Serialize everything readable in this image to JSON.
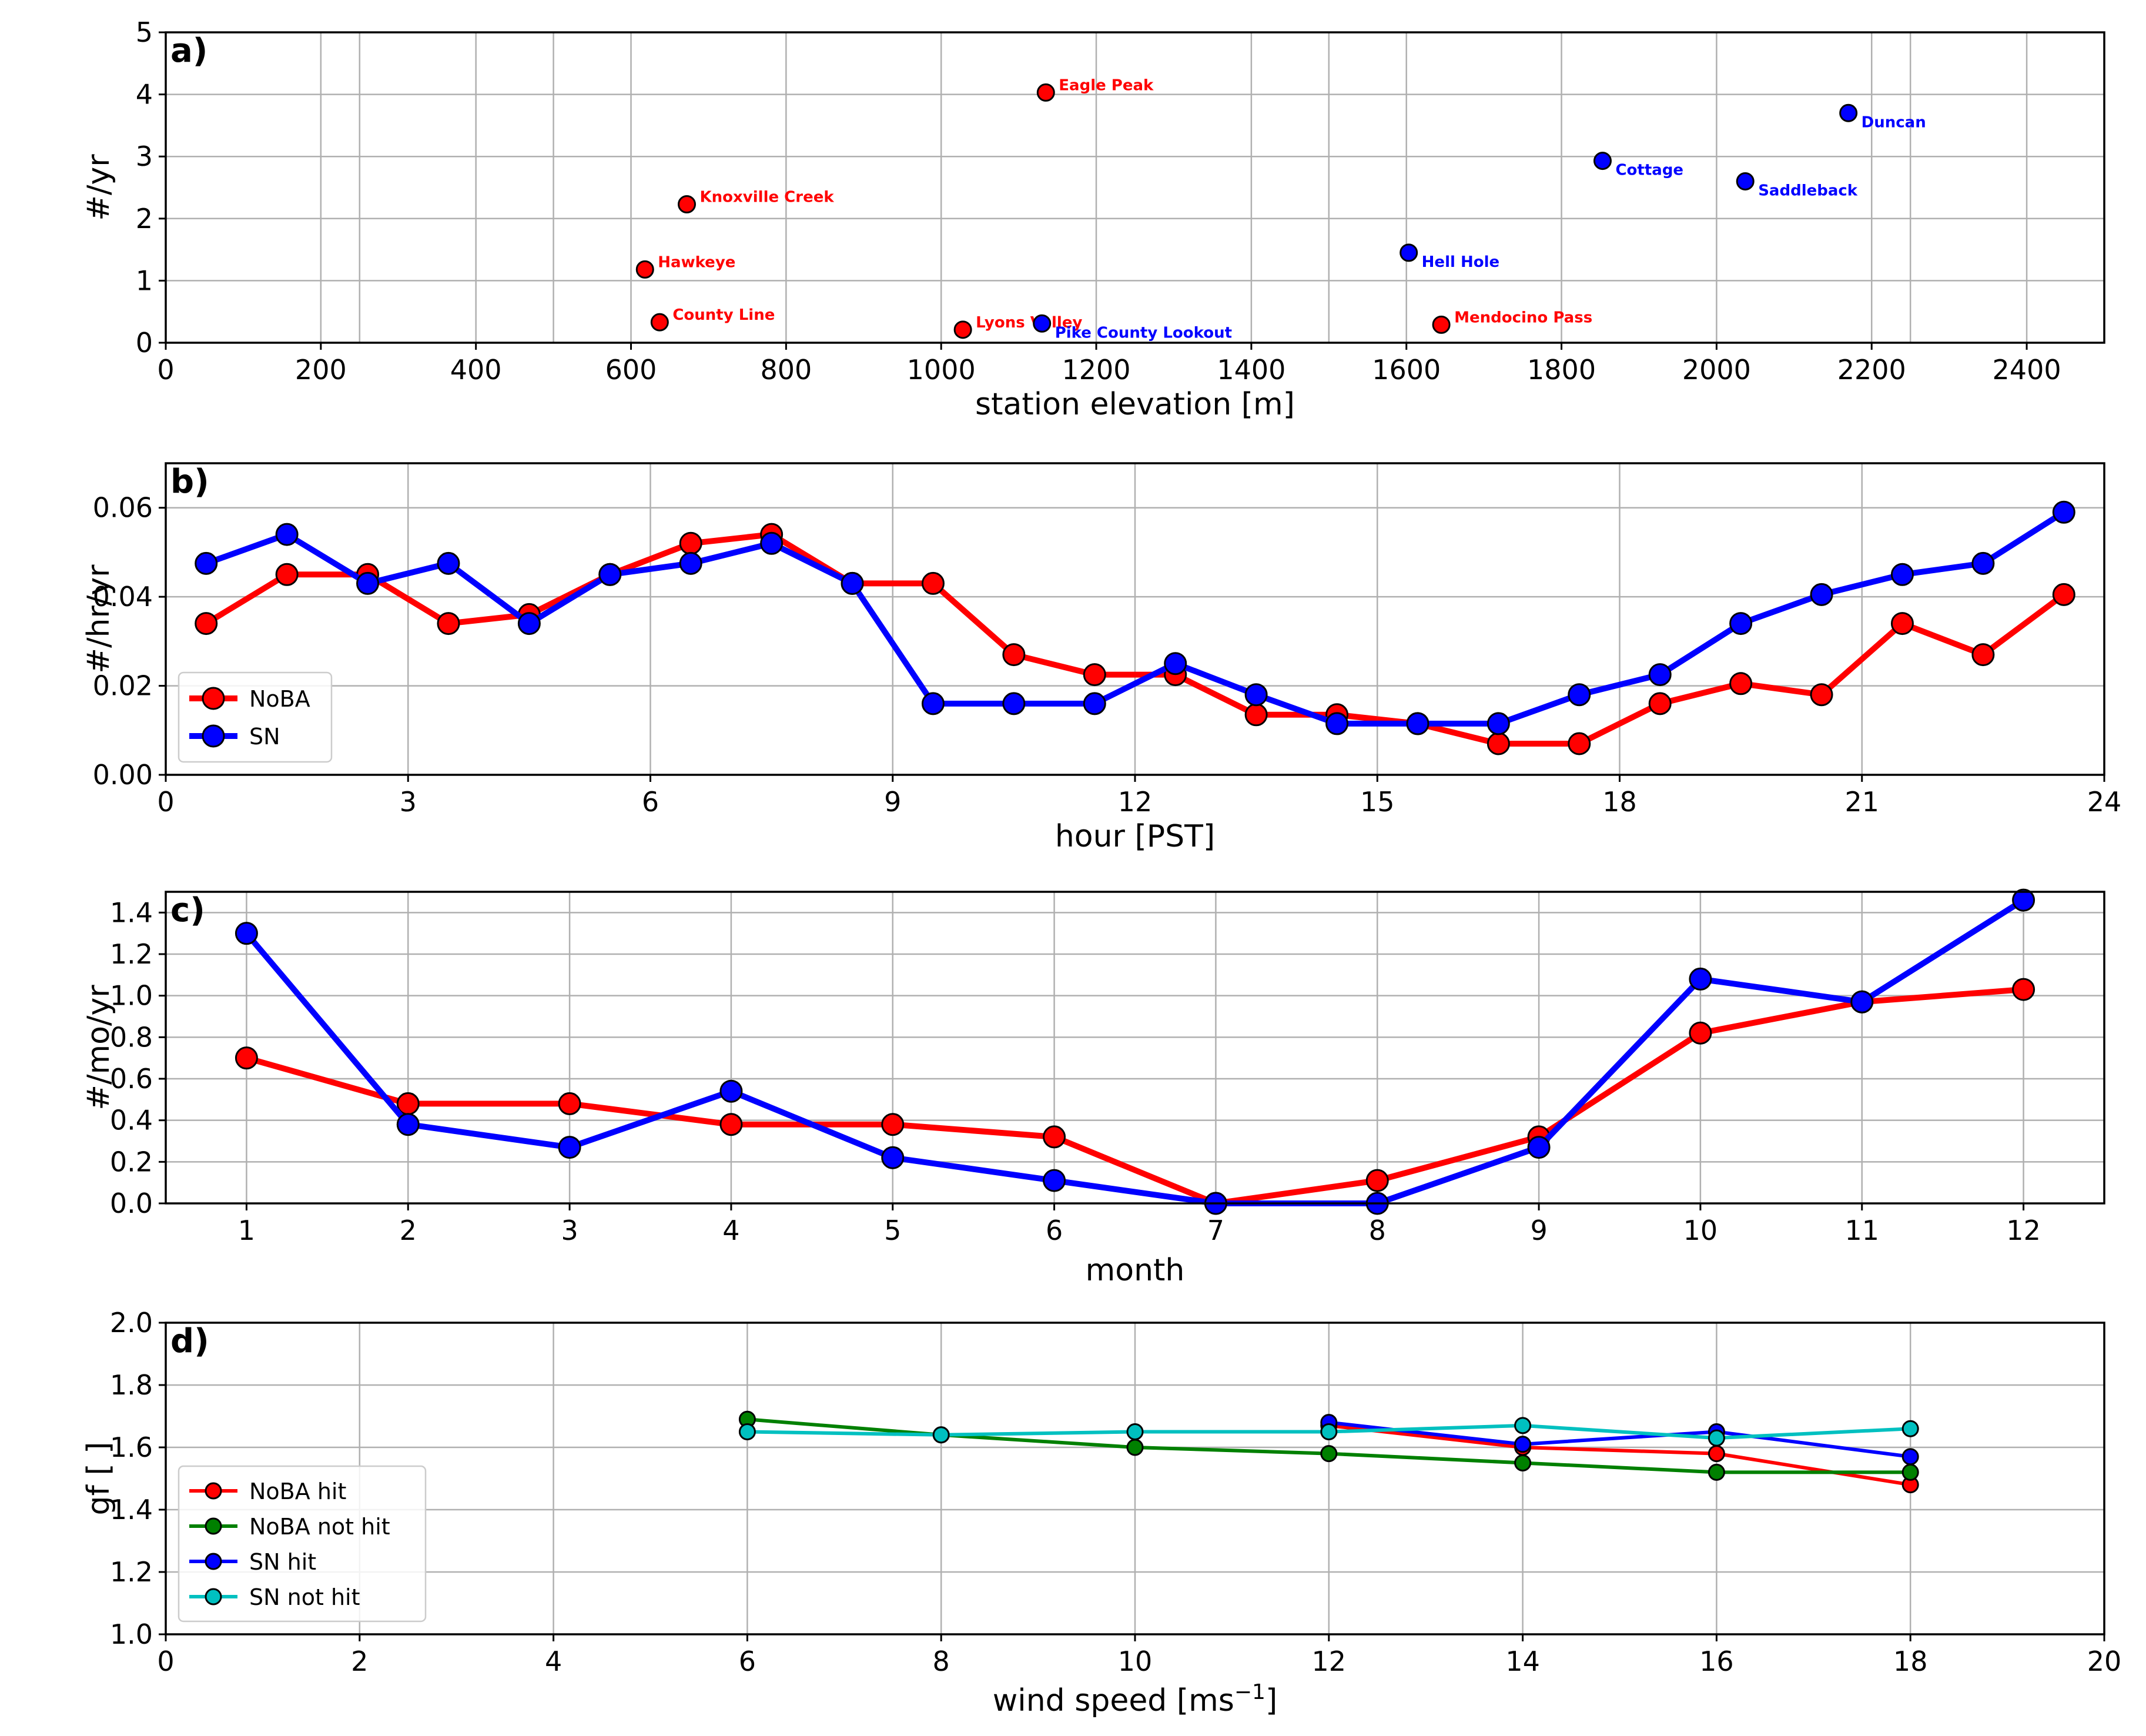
{
  "chart_data": [
    {
      "panel": "a)",
      "type": "scatter",
      "xlabel": "station elevation [m]",
      "ylabel": "#/yr",
      "xlim": [
        0,
        2500
      ],
      "ylim": [
        0,
        5
      ],
      "xticks": [
        "0",
        "200",
        "400",
        "600",
        "800",
        "1000",
        "1200",
        "1400",
        "1600",
        "1800",
        "2000",
        "2200",
        "2400"
      ],
      "yticks": [
        "0",
        "1",
        "2",
        "3",
        "4",
        "5"
      ],
      "grid": true,
      "colors": {
        "NoBA": "#ff0000",
        "SN": "#0000ff"
      },
      "points": [
        {
          "label": "Eagle Peak",
          "group": "NoBA",
          "x": 1135,
          "y": 4.03
        },
        {
          "label": "Knoxville Creek",
          "group": "NoBA",
          "x": 672,
          "y": 2.23
        },
        {
          "label": "Hawkeye",
          "group": "NoBA",
          "x": 618,
          "y": 1.18
        },
        {
          "label": "County Line",
          "group": "NoBA",
          "x": 637,
          "y": 0.33
        },
        {
          "label": "Lyons Valley",
          "group": "NoBA",
          "x": 1028,
          "y": 0.21
        },
        {
          "label": "Mendocino Pass",
          "group": "NoBA",
          "x": 1645,
          "y": 0.29
        },
        {
          "label": "Pike County Lookout",
          "group": "SN",
          "x": 1130,
          "y": 0.31
        },
        {
          "label": "Hell Hole",
          "group": "SN",
          "x": 1603,
          "y": 1.45
        },
        {
          "label": "Cottage",
          "group": "SN",
          "x": 1853,
          "y": 2.93
        },
        {
          "label": "Saddleback",
          "group": "SN",
          "x": 2037,
          "y": 2.6
        },
        {
          "label": "Duncan",
          "group": "SN",
          "x": 2170,
          "y": 3.7
        }
      ]
    },
    {
      "panel": "b)",
      "type": "line",
      "xlabel": "hour [PST]",
      "ylabel": "#/hr/yr",
      "xlim": [
        0,
        24
      ],
      "ylim": [
        0,
        0.07
      ],
      "xticks": [
        "0",
        "3",
        "6",
        "9",
        "12",
        "15",
        "18",
        "21",
        "24"
      ],
      "yticks": [
        "0.00",
        "0.02",
        "0.04",
        "0.06"
      ],
      "grid": true,
      "legend": "bottom-left",
      "x": [
        0.5,
        1.5,
        2.5,
        3.5,
        4.5,
        5.5,
        6.5,
        7.5,
        8.5,
        9.5,
        10.5,
        11.5,
        12.5,
        13.5,
        14.5,
        15.5,
        16.5,
        17.5,
        18.5,
        19.5,
        20.5,
        21.5,
        22.5,
        23.5
      ],
      "series": [
        {
          "name": "NoBA",
          "color": "#ff0000",
          "values": [
            0.034,
            0.045,
            0.045,
            0.034,
            0.036,
            0.045,
            0.052,
            0.054,
            0.043,
            0.043,
            0.027,
            0.0225,
            0.0225,
            0.0135,
            0.0135,
            0.0115,
            0.007,
            0.007,
            0.016,
            0.0205,
            0.018,
            0.034,
            0.027,
            0.0405
          ]
        },
        {
          "name": "SN",
          "color": "#0000ff",
          "values": [
            0.0475,
            0.054,
            0.043,
            0.0475,
            0.034,
            0.045,
            0.0475,
            0.052,
            0.043,
            0.016,
            0.016,
            0.016,
            0.025,
            0.018,
            0.0115,
            0.0115,
            0.0115,
            0.018,
            0.0225,
            0.034,
            0.0405,
            0.045,
            0.0475,
            0.059
          ]
        }
      ]
    },
    {
      "panel": "c)",
      "type": "line",
      "xlabel": "month",
      "ylabel": "#/mo/yr",
      "xlim": [
        0.5,
        12.5
      ],
      "ylim": [
        0,
        1.5
      ],
      "xticks": [
        "1",
        "2",
        "3",
        "4",
        "5",
        "6",
        "7",
        "8",
        "9",
        "10",
        "11",
        "12"
      ],
      "yticks": [
        "0.0",
        "0.2",
        "0.4",
        "0.6",
        "0.8",
        "1.0",
        "1.2",
        "1.4"
      ],
      "grid": true,
      "x": [
        1,
        2,
        3,
        4,
        5,
        6,
        7,
        8,
        9,
        10,
        11,
        12
      ],
      "series": [
        {
          "name": "NoBA",
          "color": "#ff0000",
          "values": [
            0.7,
            0.48,
            0.48,
            0.38,
            0.38,
            0.32,
            0.0,
            0.11,
            0.32,
            0.82,
            0.97,
            1.03
          ]
        },
        {
          "name": "SN",
          "color": "#0000ff",
          "values": [
            1.3,
            0.38,
            0.27,
            0.54,
            0.22,
            0.11,
            0.0,
            0.0,
            0.27,
            1.08,
            0.97,
            1.46
          ]
        }
      ]
    },
    {
      "panel": "d)",
      "type": "line",
      "xlabel": "wind speed [ms",
      "xlabel_sup": "−1",
      "xlabel_end": "]",
      "ylabel": "gf [ ]",
      "xlim": [
        0,
        20
      ],
      "ylim": [
        1.0,
        2.0
      ],
      "xticks": [
        "0",
        "2",
        "4",
        "6",
        "8",
        "10",
        "12",
        "14",
        "16",
        "18",
        "20"
      ],
      "yticks": [
        "1.0",
        "1.2",
        "1.4",
        "1.6",
        "1.8",
        "2.0"
      ],
      "grid": true,
      "legend": "bottom-left",
      "series": [
        {
          "name": "NoBA hit",
          "color": "#ff0000",
          "x": [
            12,
            14,
            16,
            18
          ],
          "values": [
            1.67,
            1.6,
            1.58,
            1.48
          ]
        },
        {
          "name": "NoBA not hit",
          "color": "#008000",
          "x": [
            6,
            8,
            10,
            12,
            14,
            16,
            18
          ],
          "values": [
            1.69,
            1.64,
            1.6,
            1.58,
            1.55,
            1.52,
            1.52
          ]
        },
        {
          "name": "SN hit",
          "color": "#0000ff",
          "x": [
            12,
            14,
            16,
            18
          ],
          "values": [
            1.68,
            1.61,
            1.65,
            1.57
          ]
        },
        {
          "name": "SN not hit",
          "color": "#00c0c0",
          "x": [
            6,
            8,
            10,
            12,
            14,
            16,
            18
          ],
          "values": [
            1.65,
            1.64,
            1.65,
            1.65,
            1.67,
            1.63,
            1.66
          ]
        }
      ]
    }
  ]
}
